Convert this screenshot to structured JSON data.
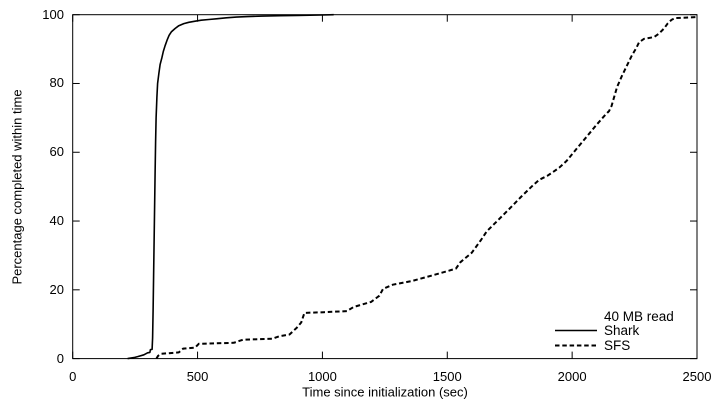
{
  "chart_data": {
    "type": "line",
    "xlabel": "Time since initialization (sec)",
    "ylabel": "Percentage completed within time",
    "xlim": [
      0,
      2500
    ],
    "ylim": [
      0,
      100
    ],
    "xticks": [
      0,
      500,
      1000,
      1500,
      2000,
      2500
    ],
    "yticks": [
      0,
      20,
      40,
      60,
      80,
      100
    ],
    "grid": false,
    "background_color": "#ffffff",
    "axis_color": "#000000",
    "legend": {
      "title": "40 MB read",
      "position": "bottom-right",
      "entries": [
        {
          "label": "Shark",
          "style": "solid"
        },
        {
          "label": "SFS",
          "style": "dashed"
        }
      ]
    },
    "series": [
      {
        "name": "Shark",
        "style": "solid",
        "color": "#000000",
        "points": [
          [
            220,
            0
          ],
          [
            245,
            0.3
          ],
          [
            262,
            0.6
          ],
          [
            285,
            1.1
          ],
          [
            300,
            1.7
          ],
          [
            309,
            1.8
          ],
          [
            311,
            2.6
          ],
          [
            318,
            2.7
          ],
          [
            320,
            6
          ],
          [
            322,
            14
          ],
          [
            324,
            24
          ],
          [
            326,
            34
          ],
          [
            328,
            44
          ],
          [
            330,
            54
          ],
          [
            332,
            63
          ],
          [
            334,
            70
          ],
          [
            337,
            76
          ],
          [
            340,
            80
          ],
          [
            345,
            83
          ],
          [
            350,
            85.5
          ],
          [
            357,
            87.5
          ],
          [
            363,
            89.3
          ],
          [
            370,
            91
          ],
          [
            378,
            92.6
          ],
          [
            386,
            94
          ],
          [
            395,
            95
          ],
          [
            410,
            96
          ],
          [
            425,
            96.8
          ],
          [
            445,
            97.4
          ],
          [
            465,
            97.8
          ],
          [
            490,
            98.1
          ],
          [
            515,
            98.4
          ],
          [
            545,
            98.6
          ],
          [
            575,
            98.8
          ],
          [
            615,
            99.1
          ],
          [
            655,
            99.3
          ],
          [
            700,
            99.45
          ],
          [
            760,
            99.6
          ],
          [
            830,
            99.7
          ],
          [
            900,
            99.8
          ],
          [
            1000,
            99.9
          ],
          [
            1045,
            100
          ]
        ]
      },
      {
        "name": "SFS",
        "style": "dashed",
        "color": "#000000",
        "points": [
          [
            335,
            0
          ],
          [
            342,
            0.8
          ],
          [
            355,
            1.4
          ],
          [
            425,
            1.8
          ],
          [
            442,
            2.9
          ],
          [
            490,
            3.2
          ],
          [
            505,
            4.3
          ],
          [
            645,
            4.6
          ],
          [
            682,
            5.5
          ],
          [
            800,
            5.8
          ],
          [
            828,
            6.5
          ],
          [
            868,
            7
          ],
          [
            898,
            9
          ],
          [
            915,
            10.5
          ],
          [
            928,
            13.3
          ],
          [
            1005,
            13.5
          ],
          [
            1098,
            13.8
          ],
          [
            1125,
            15
          ],
          [
            1195,
            16.5
          ],
          [
            1228,
            18.3
          ],
          [
            1243,
            20.3
          ],
          [
            1282,
            21.5
          ],
          [
            1360,
            22.6
          ],
          [
            1450,
            24.4
          ],
          [
            1508,
            25.6
          ],
          [
            1535,
            26.2
          ],
          [
            1552,
            28
          ],
          [
            1598,
            30.8
          ],
          [
            1635,
            34.5
          ],
          [
            1658,
            37
          ],
          [
            1700,
            40
          ],
          [
            1748,
            43.5
          ],
          [
            1795,
            47
          ],
          [
            1845,
            50.5
          ],
          [
            1868,
            52
          ],
          [
            1902,
            53.2
          ],
          [
            1928,
            54.5
          ],
          [
            1948,
            55.5
          ],
          [
            1978,
            57.5
          ],
          [
            2018,
            61
          ],
          [
            2058,
            64.5
          ],
          [
            2098,
            68
          ],
          [
            2128,
            70.5
          ],
          [
            2148,
            72
          ],
          [
            2158,
            73.5
          ],
          [
            2168,
            76
          ],
          [
            2180,
            79
          ],
          [
            2198,
            82
          ],
          [
            2218,
            85
          ],
          [
            2238,
            88
          ],
          [
            2258,
            90.5
          ],
          [
            2268,
            92
          ],
          [
            2288,
            93
          ],
          [
            2328,
            93.5
          ],
          [
            2348,
            94.5
          ],
          [
            2368,
            96
          ],
          [
            2383,
            97.5
          ],
          [
            2398,
            98.5
          ],
          [
            2412,
            99
          ],
          [
            2500,
            99.3
          ]
        ]
      }
    ]
  }
}
